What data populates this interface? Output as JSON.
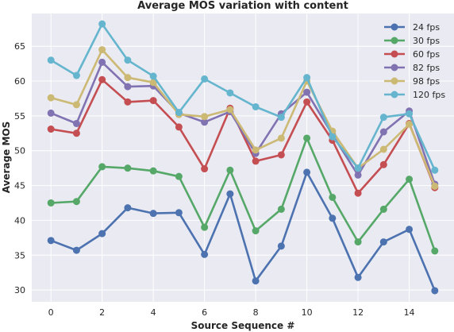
{
  "chart_data": {
    "type": "line",
    "title": "Average MOS variation with content",
    "xlabel": "Source Sequence #",
    "ylabel": "Average MOS",
    "x": [
      0,
      1,
      2,
      3,
      4,
      5,
      6,
      7,
      8,
      9,
      10,
      11,
      12,
      13,
      14,
      15
    ],
    "xlim": [
      -0.75,
      15.75
    ],
    "ylim": [
      28.3,
      69.7
    ],
    "xticks": [
      0,
      2,
      4,
      6,
      8,
      10,
      12,
      14
    ],
    "yticks": [
      30,
      35,
      40,
      45,
      50,
      55,
      60,
      65
    ],
    "grid": true,
    "legend_position": "top-right",
    "series": [
      {
        "name": "24 fps",
        "color": "#4c72b0",
        "values": [
          37.1,
          35.7,
          38.1,
          41.8,
          41.0,
          41.1,
          35.1,
          43.8,
          31.3,
          36.3,
          46.9,
          40.3,
          31.8,
          36.9,
          38.7,
          29.9
        ]
      },
      {
        "name": "30 fps",
        "color": "#55a868",
        "values": [
          42.5,
          42.7,
          47.7,
          47.5,
          47.1,
          46.3,
          39.0,
          47.2,
          38.5,
          41.6,
          51.8,
          43.3,
          36.9,
          41.6,
          45.9,
          35.6
        ]
      },
      {
        "name": "60 fps",
        "color": "#c44e52",
        "values": [
          53.1,
          52.5,
          60.2,
          57.0,
          57.2,
          53.4,
          47.4,
          56.1,
          48.5,
          49.4,
          57.0,
          51.5,
          43.9,
          48.0,
          53.9,
          44.7
        ]
      },
      {
        "name": "82 fps",
        "color": "#8172b2",
        "values": [
          55.4,
          53.9,
          62.7,
          59.2,
          59.3,
          55.4,
          54.1,
          55.6,
          49.6,
          55.3,
          58.4,
          52.3,
          46.5,
          52.7,
          55.7,
          45.2
        ]
      },
      {
        "name": "98 fps",
        "color": "#ccb974",
        "values": [
          57.6,
          56.6,
          64.5,
          60.5,
          59.8,
          55.2,
          54.9,
          55.9,
          50.1,
          51.8,
          60.0,
          52.8,
          47.5,
          50.2,
          53.8,
          44.9
        ]
      },
      {
        "name": "120 fps",
        "color": "#64b5cd",
        "values": [
          63.0,
          60.8,
          68.2,
          63.0,
          60.7,
          55.5,
          60.3,
          58.3,
          56.3,
          54.8,
          60.5,
          52.0,
          47.5,
          54.8,
          55.3,
          47.2
        ]
      }
    ]
  }
}
